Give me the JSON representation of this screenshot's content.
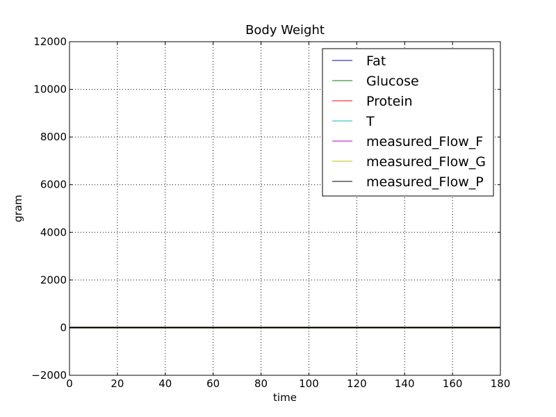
{
  "chart_data": {
    "type": "line",
    "title": "Body Weight",
    "xlabel": "time",
    "ylabel": "gram",
    "xlim": [
      0,
      180
    ],
    "ylim": [
      -2000,
      12000
    ],
    "xticks": [
      0,
      20,
      40,
      60,
      80,
      100,
      120,
      140,
      160,
      180
    ],
    "xtick_labels": [
      "0",
      "20",
      "40",
      "60",
      "80",
      "100",
      "120",
      "140",
      "160",
      "180"
    ],
    "yticks": [
      -2000,
      0,
      2000,
      4000,
      6000,
      8000,
      10000,
      12000
    ],
    "ytick_labels": [
      "−2000",
      "0",
      "2000",
      "4000",
      "6000",
      "8000",
      "10000",
      "12000"
    ],
    "grid": true,
    "legend_position": "top-right",
    "series": [
      {
        "name": "Fat",
        "color": "#0000bf",
        "x": [
          0,
          180
        ],
        "y": [
          0,
          0
        ]
      },
      {
        "name": "Glucose",
        "color": "#007f00",
        "x": [
          0,
          180
        ],
        "y": [
          0,
          0
        ]
      },
      {
        "name": "Protein",
        "color": "#ff0000",
        "x": [
          0,
          180
        ],
        "y": [
          0,
          0
        ]
      },
      {
        "name": "T",
        "color": "#00bfbf",
        "x": [
          0,
          180
        ],
        "y": [
          0,
          0
        ]
      },
      {
        "name": "measured_Flow_F",
        "color": "#bf00bf",
        "x": [
          0,
          180
        ],
        "y": [
          0,
          0
        ]
      },
      {
        "name": "measured_Flow_G",
        "color": "#bfbf00",
        "x": [
          0,
          180
        ],
        "y": [
          0,
          0
        ]
      },
      {
        "name": "measured_Flow_P",
        "color": "#000000",
        "x": [
          0,
          180
        ],
        "y": [
          0,
          0
        ]
      }
    ]
  }
}
